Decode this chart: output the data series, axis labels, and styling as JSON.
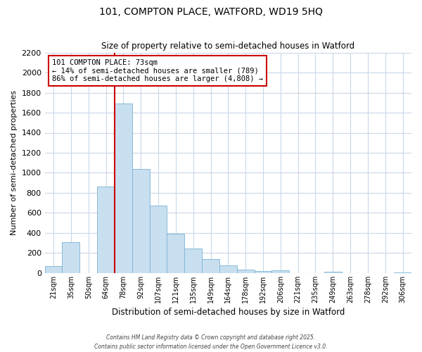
{
  "title": "101, COMPTON PLACE, WATFORD, WD19 5HQ",
  "subtitle": "Size of property relative to semi-detached houses in Watford",
  "xlabel": "Distribution of semi-detached houses by size in Watford",
  "ylabel": "Number of semi-detached properties",
  "bar_labels": [
    "21sqm",
    "35sqm",
    "50sqm",
    "64sqm",
    "78sqm",
    "92sqm",
    "107sqm",
    "121sqm",
    "135sqm",
    "149sqm",
    "164sqm",
    "178sqm",
    "192sqm",
    "206sqm",
    "221sqm",
    "235sqm",
    "249sqm",
    "263sqm",
    "278sqm",
    "292sqm",
    "306sqm"
  ],
  "bar_values": [
    70,
    305,
    0,
    860,
    1690,
    1040,
    675,
    395,
    245,
    140,
    80,
    35,
    20,
    25,
    0,
    0,
    15,
    0,
    0,
    0,
    5
  ],
  "bar_color": "#c8dff0",
  "bar_edge_color": "#7ab3d4",
  "vline_color": "#cc0000",
  "vline_index": 4,
  "ylim": [
    0,
    2200
  ],
  "yticks": [
    0,
    200,
    400,
    600,
    800,
    1000,
    1200,
    1400,
    1600,
    1800,
    2000,
    2200
  ],
  "annotation_title": "101 COMPTON PLACE: 73sqm",
  "annotation_line1": "← 14% of semi-detached houses are smaller (789)",
  "annotation_line2": "86% of semi-detached houses are larger (4,808) →",
  "annotation_box_color": "#ffffff",
  "annotation_box_edge": "#cc0000",
  "footer1": "Contains HM Land Registry data © Crown copyright and database right 2025.",
  "footer2": "Contains public sector information licensed under the Open Government Licence v3.0.",
  "background_color": "#ffffff",
  "grid_color": "#c8d8e8"
}
